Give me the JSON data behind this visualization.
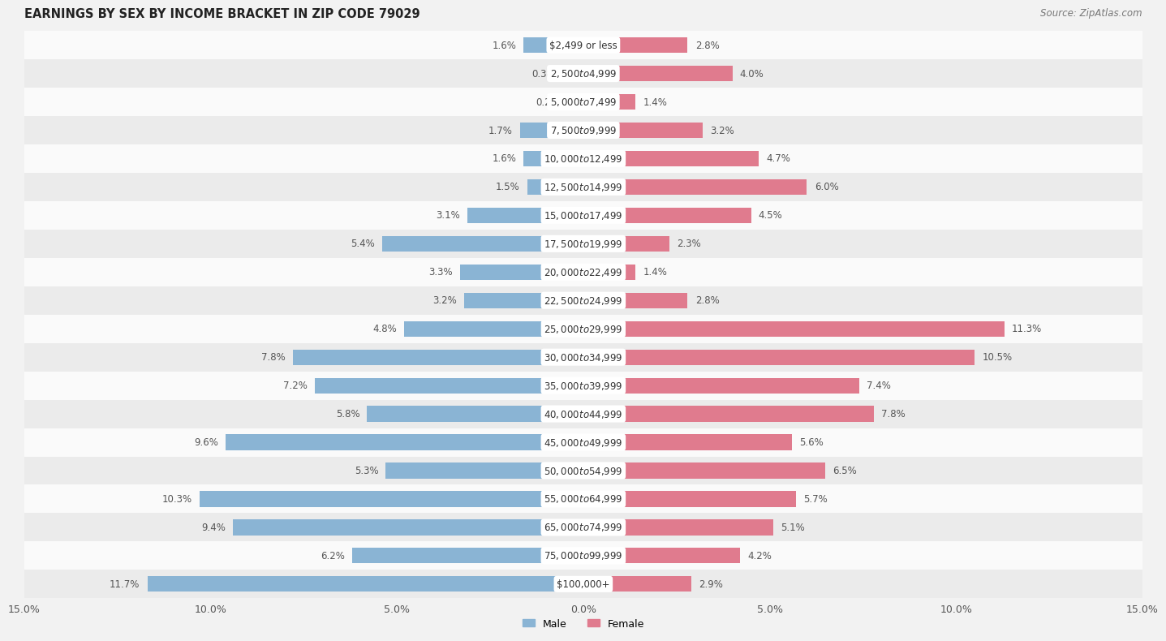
{
  "title": "EARNINGS BY SEX BY INCOME BRACKET IN ZIP CODE 79029",
  "source": "Source: ZipAtlas.com",
  "categories": [
    "$2,499 or less",
    "$2,500 to $4,999",
    "$5,000 to $7,499",
    "$7,500 to $9,999",
    "$10,000 to $12,499",
    "$12,500 to $14,999",
    "$15,000 to $17,499",
    "$17,500 to $19,999",
    "$20,000 to $22,499",
    "$22,500 to $24,999",
    "$25,000 to $29,999",
    "$30,000 to $34,999",
    "$35,000 to $39,999",
    "$40,000 to $44,999",
    "$45,000 to $49,999",
    "$50,000 to $54,999",
    "$55,000 to $64,999",
    "$65,000 to $74,999",
    "$75,000 to $99,999",
    "$100,000+"
  ],
  "male_values": [
    1.6,
    0.38,
    0.26,
    1.7,
    1.6,
    1.5,
    3.1,
    5.4,
    3.3,
    3.2,
    4.8,
    7.8,
    7.2,
    5.8,
    9.6,
    5.3,
    10.3,
    9.4,
    6.2,
    11.7
  ],
  "female_values": [
    2.8,
    4.0,
    1.4,
    3.2,
    4.7,
    6.0,
    4.5,
    2.3,
    1.4,
    2.8,
    11.3,
    10.5,
    7.4,
    7.8,
    5.6,
    6.5,
    5.7,
    5.1,
    4.2,
    2.9
  ],
  "male_color": "#8ab4d4",
  "female_color": "#e07b8e",
  "male_color_light": "#aac8e0",
  "female_color_light": "#e8a0ae",
  "male_label": "Male",
  "female_label": "Female",
  "xlim": 15.0,
  "bar_height": 0.55,
  "background_color": "#f2f2f2",
  "row_colors": [
    "#fafafa",
    "#ebebeb"
  ],
  "title_fontsize": 10.5,
  "label_fontsize": 8.5,
  "cat_fontsize": 8.5,
  "tick_fontsize": 9,
  "source_fontsize": 8.5
}
